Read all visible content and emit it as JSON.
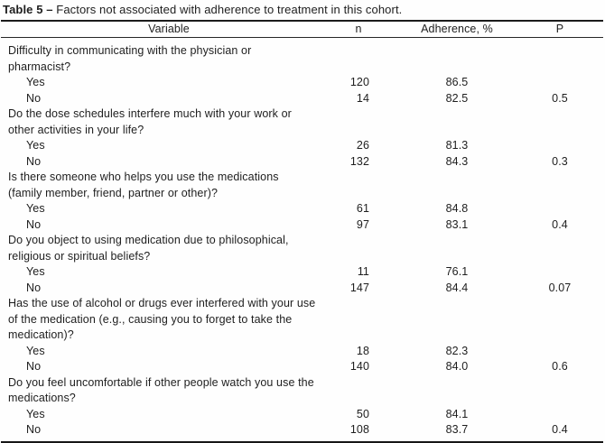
{
  "title": {
    "label": "Table 5 –",
    "text": "Factors not associated with adherence to treatment in this cohort."
  },
  "columns": {
    "variable": "Variable",
    "n": "n",
    "adherence": "Adherence, %",
    "p": "P"
  },
  "groups": [
    {
      "question_lines": [
        "Difficulty in communicating with the physician or",
        "pharmacist?"
      ],
      "rows": [
        {
          "label": "Yes",
          "n": "120",
          "adherence": "86.5",
          "p": ""
        },
        {
          "label": "No",
          "n": "14",
          "adherence": "82.5",
          "p": "0.5"
        }
      ]
    },
    {
      "question_lines": [
        "Do the dose schedules interfere much with your work or",
        "other activities in your life?"
      ],
      "rows": [
        {
          "label": "Yes",
          "n": "26",
          "adherence": "81.3",
          "p": ""
        },
        {
          "label": "No",
          "n": "132",
          "adherence": "84.3",
          "p": "0.3"
        }
      ]
    },
    {
      "question_lines": [
        "Is there someone who helps you use the medications",
        "(family member, friend, partner or other)?"
      ],
      "rows": [
        {
          "label": "Yes",
          "n": "61",
          "adherence": "84.8",
          "p": ""
        },
        {
          "label": "No",
          "n": "97",
          "adherence": "83.1",
          "p": "0.4"
        }
      ]
    },
    {
      "question_lines": [
        "Do you object to using medication due to philosophical,",
        "religious or spiritual beliefs?"
      ],
      "rows": [
        {
          "label": "Yes",
          "n": "11",
          "adherence": "76.1",
          "p": ""
        },
        {
          "label": "No",
          "n": "147",
          "adherence": "84.4",
          "p": "0.07"
        }
      ]
    },
    {
      "question_lines": [
        "Has the use of alcohol or drugs ever interfered with your use",
        "of the medication (e.g., causing you to forget to take the",
        "medication)?"
      ],
      "rows": [
        {
          "label": "Yes",
          "n": "18",
          "adherence": "82.3",
          "p": ""
        },
        {
          "label": "No",
          "n": "140",
          "adherence": "84.0",
          "p": "0.6"
        }
      ]
    },
    {
      "question_lines": [
        "Do you feel uncomfortable if other people watch you use the",
        "medications?"
      ],
      "rows": [
        {
          "label": "Yes",
          "n": "50",
          "adherence": "84.1",
          "p": ""
        },
        {
          "label": "No",
          "n": "108",
          "adherence": "83.7",
          "p": "0.4"
        }
      ]
    }
  ]
}
